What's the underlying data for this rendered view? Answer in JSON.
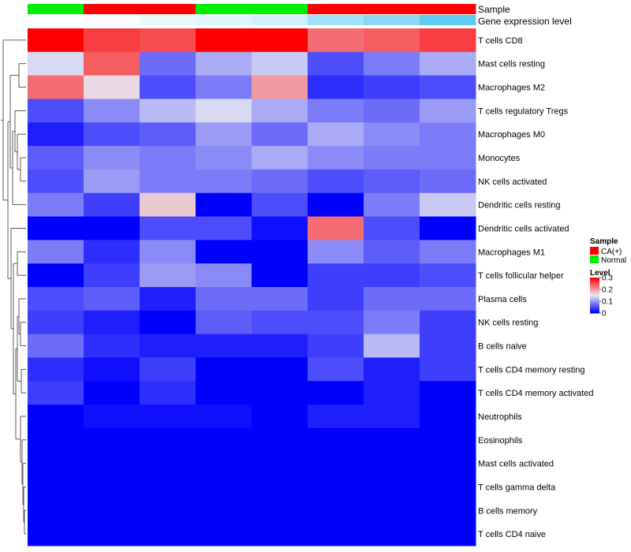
{
  "chart_data": {
    "type": "heatmap",
    "annotations": {
      "sample_label": "Sample",
      "expression_label": "Gene expression level",
      "sample": [
        "Normal",
        "CA(+)",
        "CA(+)",
        "Normal",
        "Normal",
        "CA(+)",
        "CA(+)",
        "CA(+)"
      ],
      "expression": [
        0.02,
        0.03,
        0.12,
        0.18,
        0.28,
        0.55,
        0.7,
        0.95
      ]
    },
    "rows": [
      "T cells CD8",
      "Mast cells resting",
      "Macrophages M2",
      "T cells regulatory  Tregs",
      "Macrophages M0",
      "Monocytes",
      "NK cells activated",
      "Dendritic cells resting",
      "Dendritic cells activated",
      "Macrophages M1",
      "T cells follicular helper",
      "Plasma cells",
      "NK cells resting",
      "B cells naive",
      "T cells CD4 memory resting",
      "T cells CD4 memory activated",
      "Neutrophils",
      "Eosinophils",
      "Mast cells activated",
      "T cells gamma delta",
      "B cells memory",
      "T cells CD4 naive"
    ],
    "values": [
      [
        0.3,
        0.26,
        0.25,
        0.3,
        0.3,
        0.23,
        0.24,
        0.26
      ],
      [
        0.14,
        0.24,
        0.07,
        0.11,
        0.13,
        0.05,
        0.08,
        0.11
      ],
      [
        0.23,
        0.16,
        0.05,
        0.08,
        0.2,
        0.03,
        0.04,
        0.05
      ],
      [
        0.05,
        0.09,
        0.12,
        0.14,
        0.11,
        0.08,
        0.07,
        0.1
      ],
      [
        0.02,
        0.05,
        0.06,
        0.1,
        0.07,
        0.11,
        0.09,
        0.08
      ],
      [
        0.06,
        0.09,
        0.08,
        0.09,
        0.11,
        0.09,
        0.08,
        0.08
      ],
      [
        0.05,
        0.1,
        0.08,
        0.08,
        0.07,
        0.05,
        0.06,
        0.07
      ],
      [
        0.08,
        0.04,
        0.17,
        0.0,
        0.05,
        0.0,
        0.08,
        0.13
      ],
      [
        0.0,
        0.0,
        0.05,
        0.05,
        0.01,
        0.23,
        0.05,
        0.0
      ],
      [
        0.08,
        0.03,
        0.09,
        0.0,
        0.0,
        0.09,
        0.06,
        0.08
      ],
      [
        0.0,
        0.04,
        0.1,
        0.09,
        0.0,
        0.04,
        0.04,
        0.05
      ],
      [
        0.05,
        0.06,
        0.02,
        0.07,
        0.07,
        0.04,
        0.07,
        0.07
      ],
      [
        0.04,
        0.02,
        0.0,
        0.06,
        0.05,
        0.05,
        0.08,
        0.04
      ],
      [
        0.07,
        0.03,
        0.02,
        0.02,
        0.02,
        0.04,
        0.12,
        0.04
      ],
      [
        0.03,
        0.01,
        0.04,
        0.0,
        0.0,
        0.05,
        0.02,
        0.04
      ],
      [
        0.04,
        0.0,
        0.03,
        0.0,
        0.0,
        0.0,
        0.02,
        0.0
      ],
      [
        0.0,
        0.01,
        0.01,
        0.01,
        0.0,
        0.02,
        0.02,
        0.0
      ],
      [
        0.0,
        0.0,
        0.0,
        0.0,
        0.0,
        0.0,
        0.0,
        0.0
      ],
      [
        0.0,
        0.0,
        0.0,
        0.0,
        0.0,
        0.0,
        0.0,
        0.0
      ],
      [
        0.0,
        0.0,
        0.0,
        0.0,
        0.0,
        0.0,
        0.0,
        0.0
      ],
      [
        0.0,
        0.0,
        0.0,
        0.0,
        0.0,
        0.0,
        0.0,
        0.0
      ],
      [
        0.0,
        0.0,
        0.0,
        0.0,
        0.0,
        0.0,
        0.0,
        0.0
      ]
    ],
    "color_scale": {
      "low": "#0000ff",
      "mid": "#e8e8f2",
      "high": "#ff0000",
      "domain": [
        0,
        0.15,
        0.3
      ]
    },
    "legend_sample": {
      "title": "Sample",
      "items": [
        {
          "label": "CA(+)",
          "color": "#ff0000"
        },
        {
          "label": "Normal",
          "color": "#00ee00"
        }
      ]
    },
    "legend_level": {
      "title": "Level",
      "ticks": [
        "0.3",
        "0.2",
        "0.1",
        "0"
      ],
      "tick_values": [
        0.3,
        0.2,
        0.1,
        0
      ]
    },
    "expression_colors": {
      "low": "#ffffff",
      "high": "#56c8f0"
    },
    "legend_position": "right",
    "dendrogram": "rows"
  }
}
